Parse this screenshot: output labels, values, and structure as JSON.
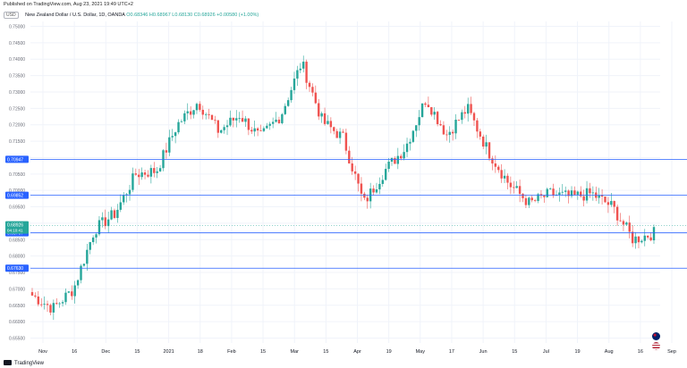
{
  "published": "Published on TradingView.com, Aug 23, 2021 19:49 UTC+2",
  "header": {
    "currency_badge": "USD",
    "pair": "New Zealand Dollar / U.S. Dollar, 1D, OANDA",
    "open": "O0.68346",
    "high": "H0.68967",
    "low": "L0.68130",
    "close": "C0.68926",
    "change": "+0.00580 (+1.00%)"
  },
  "footer": {
    "brand": "TradingView"
  },
  "colors": {
    "up": "#26a69a",
    "down": "#ef5350",
    "line": "#2962ff",
    "grid": "#f0f3fa",
    "price_label": "#26a69a"
  },
  "icons": [
    "new-zealand-flag-icon",
    "us-flag-icon",
    "tradingview-logo-icon"
  ],
  "chart_data": {
    "type": "candlestick",
    "y_ticks": [
      "0.75000",
      "0.74500",
      "0.74000",
      "0.73500",
      "0.73000",
      "0.72500",
      "0.72000",
      "0.71500",
      "0.71000",
      "0.70500",
      "0.70000",
      "0.69500",
      "0.69000",
      "0.68500",
      "0.68000",
      "0.67500",
      "0.67000",
      "0.66500",
      "0.66000",
      "0.65500"
    ],
    "ylim": [
      0.6535,
      0.7515
    ],
    "x_ticks": [
      "Nov",
      "16",
      "Dec",
      "15",
      "2021",
      "18",
      "Feb",
      "15",
      "Mar",
      "15",
      "Apr",
      "19",
      "May",
      "17",
      "Jun",
      "15",
      "Jul",
      "19",
      "Aug",
      "16",
      "Sep"
    ],
    "horizontal_lines": [
      {
        "value": 0.70947,
        "label": "0.70947"
      },
      {
        "value": 0.69852,
        "label": "0.69852"
      },
      {
        "value": 0.68707,
        "label": "0.68707"
      },
      {
        "value": 0.6763,
        "label": "0.67630"
      }
    ],
    "price_label": {
      "value": 0.68926,
      "text": "0.68926",
      "countdown": "04:10:41"
    },
    "series_anchors": [
      [
        0.668,
        0.672
      ],
      [
        0.664,
        0.663
      ],
      [
        0.67,
        0.674
      ],
      [
        0.688,
        0.69
      ],
      [
        0.693,
        0.6975
      ],
      [
        0.705,
        0.71
      ],
      [
        0.706,
        0.712
      ],
      [
        0.72,
        0.724
      ],
      [
        0.727,
        0.73
      ],
      [
        0.718,
        0.714
      ],
      [
        0.723,
        0.718
      ],
      [
        0.716,
        0.712
      ],
      [
        0.723,
        0.722
      ],
      [
        0.739,
        0.744
      ],
      [
        0.721,
        0.715
      ],
      [
        0.716,
        0.713
      ],
      [
        0.696,
        0.697
      ],
      [
        0.706,
        0.711
      ],
      [
        0.713,
        0.718
      ],
      [
        0.728,
        0.73
      ],
      [
        0.717,
        0.72
      ],
      [
        0.725,
        0.729
      ],
      [
        0.712,
        0.715
      ],
      [
        0.702,
        0.698
      ],
      [
        0.696,
        0.699
      ],
      [
        0.699,
        0.697
      ],
      [
        0.698,
        0.693
      ],
      [
        0.699,
        0.702
      ],
      [
        0.695,
        0.696
      ],
      [
        0.685,
        0.682
      ],
      [
        0.687,
        0.689
      ]
    ]
  }
}
